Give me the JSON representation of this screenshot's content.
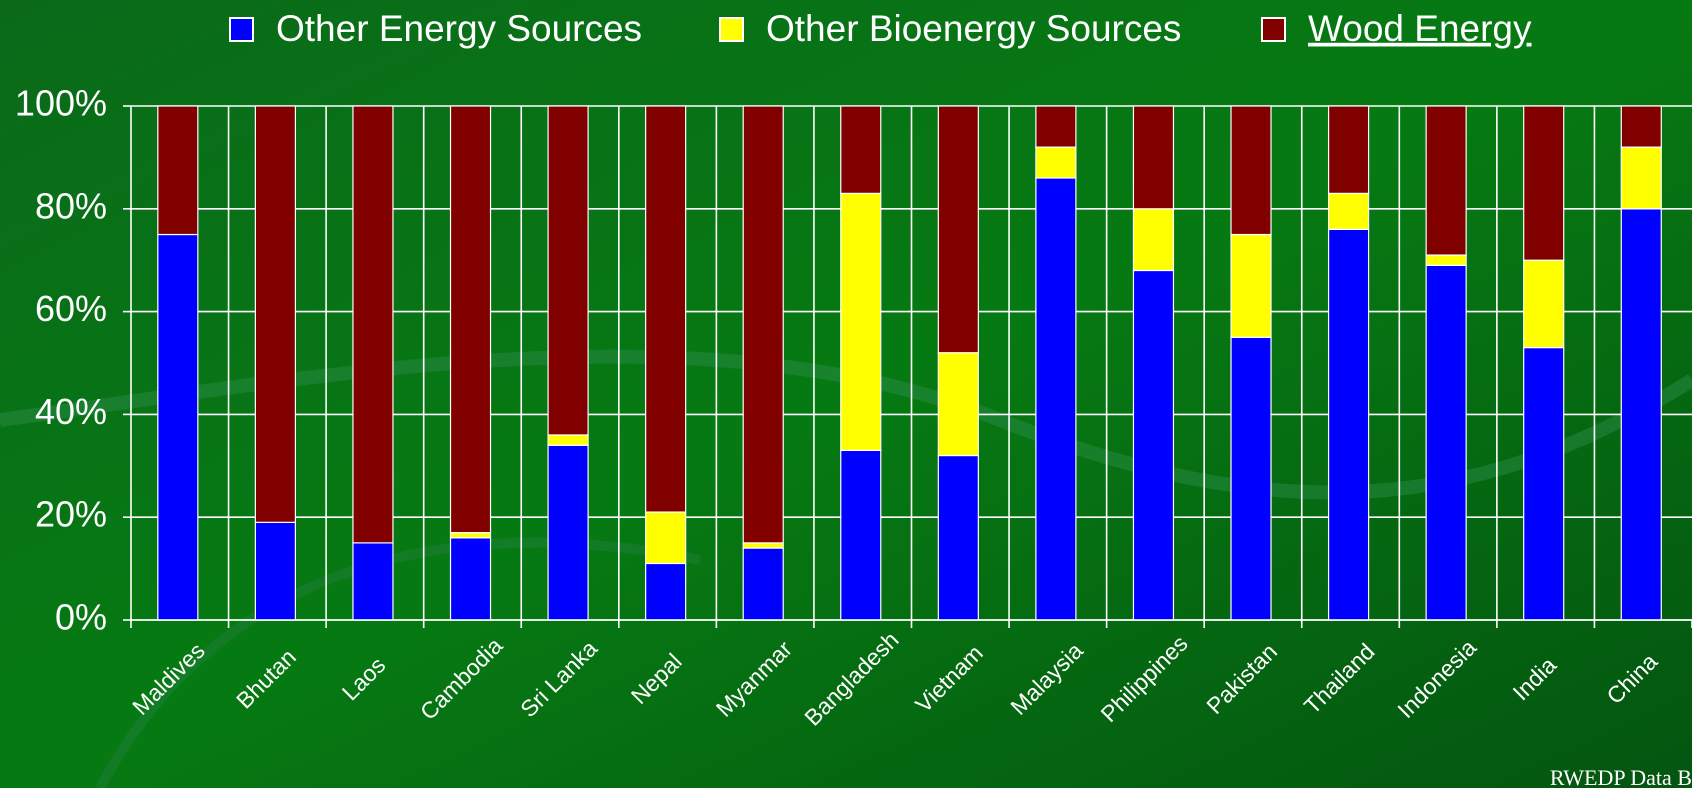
{
  "chart_data": {
    "type": "stacked_bar",
    "categories": [
      "Maldives",
      "Bhutan",
      "Laos",
      "Cambodia",
      "Sri Lanka",
      "Nepal",
      "Myanmar",
      "Bangladesh",
      "Vietnam",
      "Malaysia",
      "Philippines",
      "Pakistan",
      "Thailand",
      "Indonesia",
      "India",
      "China"
    ],
    "series": [
      {
        "name": "Other Energy Sources",
        "color": "#0000ff",
        "values": [
          75,
          19,
          15,
          16,
          34,
          11,
          14,
          33,
          32,
          86,
          68,
          55,
          76,
          69,
          53,
          80
        ]
      },
      {
        "name": "Other Bioenergy Sources",
        "color": "#ffff00",
        "values": [
          0,
          0,
          0,
          1,
          2,
          10,
          1,
          50,
          20,
          6,
          12,
          20,
          7,
          2,
          17,
          12
        ]
      },
      {
        "name": "Wood Energy",
        "color": "#800000",
        "values": [
          25,
          81,
          85,
          83,
          64,
          79,
          85,
          17,
          48,
          8,
          20,
          25,
          17,
          29,
          30,
          8
        ]
      }
    ],
    "ylim": [
      0,
      100
    ],
    "yticks": [
      {
        "value": 0,
        "label": "0%"
      },
      {
        "value": 20,
        "label": "20%"
      },
      {
        "value": 40,
        "label": "40%"
      },
      {
        "value": 60,
        "label": "60%"
      },
      {
        "value": 80,
        "label": "80%"
      },
      {
        "value": 100,
        "label": "100%"
      }
    ],
    "grid": true,
    "legend": "top",
    "source": "RWEDP Data B"
  }
}
